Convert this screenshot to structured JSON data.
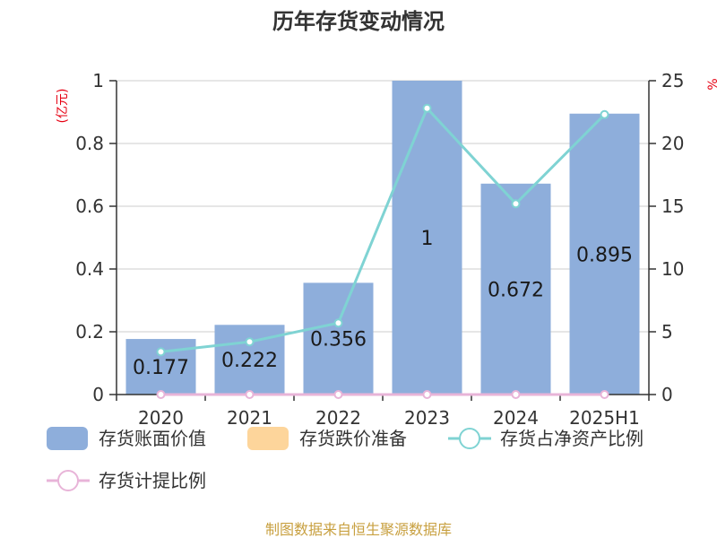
{
  "chart_data": {
    "type": "bar",
    "title": "历年存货变动情况",
    "categories": [
      "2020",
      "2021",
      "2022",
      "2023",
      "2024",
      "2025H1"
    ],
    "y_left_unit": "(亿元)",
    "y_right_unit": "%",
    "y_left_range": [
      0,
      1
    ],
    "y_left_ticks": [
      "0",
      "0.2",
      "0.4",
      "0.6",
      "0.8",
      "1"
    ],
    "y_right_range": [
      0,
      25
    ],
    "y_right_ticks": [
      "0",
      "5",
      "10",
      "15",
      "20",
      "25"
    ],
    "grid": true,
    "legend_position": "bottom",
    "series": [
      {
        "name": "存货账面价值",
        "type": "bar",
        "axis": "left",
        "color": "#8eaedb",
        "values": [
          0.177,
          0.222,
          0.356,
          1,
          0.672,
          0.895
        ],
        "labels": [
          "0.177",
          "0.222",
          "0.356",
          "1",
          "0.672",
          "0.895"
        ]
      },
      {
        "name": "存货跌价准备",
        "type": "bar",
        "axis": "left",
        "color": "#fdd59b",
        "values": [
          0,
          0,
          0,
          0,
          0,
          0
        ]
      },
      {
        "name": "存货占净资产比例",
        "type": "line",
        "axis": "right",
        "color": "#7fd3d3",
        "values": [
          3.4,
          4.2,
          5.7,
          22.8,
          15.2,
          22.3
        ]
      },
      {
        "name": "存货计提比例",
        "type": "line",
        "axis": "right",
        "color": "#e8b4d8",
        "values": [
          0,
          0,
          0,
          0,
          0,
          0
        ]
      }
    ]
  },
  "source": "制图数据来自恒生聚源数据库"
}
